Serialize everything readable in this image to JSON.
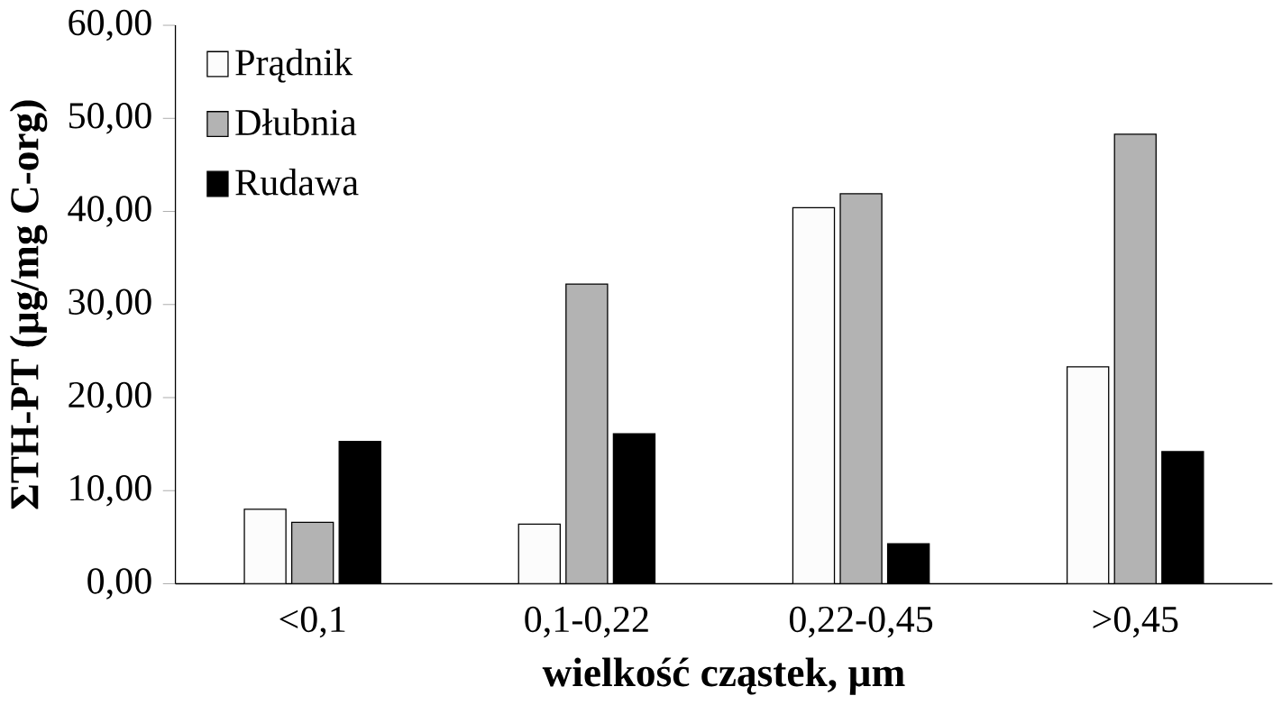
{
  "chart_data": {
    "type": "bar",
    "xlabel": "wielkość cząstek, µm",
    "ylabel": "ΣTH-PT (µg/mg C-org)",
    "categories": [
      "<0,1",
      "0,1-0,22",
      "0,22-0,45",
      ">0,45"
    ],
    "series": [
      {
        "name": "Prądnik",
        "color": "#fcfcfc",
        "values": [
          8.0,
          6.4,
          40.4,
          23.3
        ]
      },
      {
        "name": "Dłubnia",
        "color": "#b3b3b3",
        "values": [
          6.6,
          32.2,
          41.9,
          48.3
        ]
      },
      {
        "name": "Rudawa",
        "color": "#000000",
        "values": [
          15.3,
          16.1,
          4.3,
          14.2
        ]
      }
    ],
    "ylim": [
      0,
      60
    ],
    "yticks": [
      {
        "value": 0,
        "label": "0,00"
      },
      {
        "value": 10,
        "label": "10,00"
      },
      {
        "value": 20,
        "label": "20,00"
      },
      {
        "value": 30,
        "label": "30,00"
      },
      {
        "value": 40,
        "label": "40,00"
      },
      {
        "value": 50,
        "label": "50,00"
      },
      {
        "value": 60,
        "label": "60,00"
      }
    ],
    "grid": false,
    "legend": "top left"
  }
}
